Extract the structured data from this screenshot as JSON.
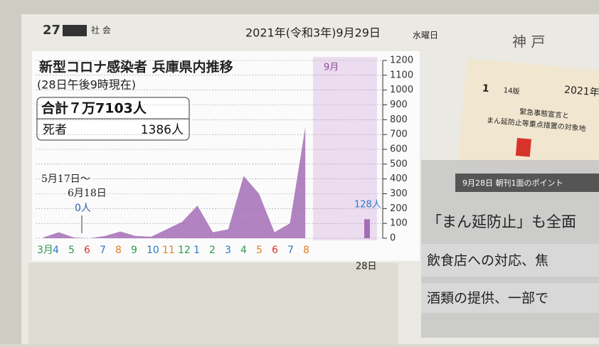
{
  "header": {
    "page": "27",
    "section": "社 会",
    "date": "2021年(令和3年)9月29日",
    "weekday": "水曜日",
    "paper": "神 戸"
  },
  "chart_data": {
    "type": "area",
    "title": "新型コロナ感染者 兵庫県内推移",
    "subtitle": "(28日午後9時現在)",
    "total": "合計７万7103人",
    "deaths_label": "死者",
    "deaths": "1386人",
    "annotation": [
      "5月17日～",
      "6月18日",
      "0人"
    ],
    "current_month": "9月",
    "last_day": "28日",
    "last_value": 128,
    "last_value_label": "128人",
    "categories": [
      "3月",
      "4",
      "5",
      "6",
      "7",
      "8",
      "9",
      "10",
      "11",
      "12",
      "1",
      "2",
      "3",
      "4",
      "5",
      "6",
      "7",
      "8"
    ],
    "label_colors": [
      "#2a9a4a",
      "#2a7ac8",
      "#2a9a4a",
      "#e03030",
      "#2a7ac8",
      "#e08020",
      "#2a9a4a",
      "#2a7ac8",
      "#e08020",
      "#2a9a4a",
      "#2a7ac8",
      "#2a9a4a",
      "#2a7ac8",
      "#2a9a4a",
      "#e08020",
      "#e03030",
      "#2a7ac8",
      "#e08020"
    ],
    "values": [
      5,
      40,
      5,
      0,
      15,
      45,
      15,
      10,
      60,
      110,
      220,
      40,
      60,
      420,
      300,
      40,
      100,
      750
    ],
    "color": "#a36db5",
    "ylim": [
      0,
      1200
    ],
    "yticks": [
      0,
      100,
      200,
      300,
      400,
      500,
      600,
      700,
      800,
      900,
      1000,
      1100,
      1200
    ],
    "grid": true
  },
  "news": {
    "tag": "9月28日 朝刊1面のポイント",
    "lines": [
      "「まん延防止」も全面",
      "飲食店への対応、焦",
      "酒類の提供、一部で"
    ]
  },
  "clipping": {
    "page": "1",
    "edition": "14版",
    "year": "2021年",
    "headline": [
      "緊急事態宣言と",
      "まん延防止等重点措置の対象地"
    ]
  }
}
